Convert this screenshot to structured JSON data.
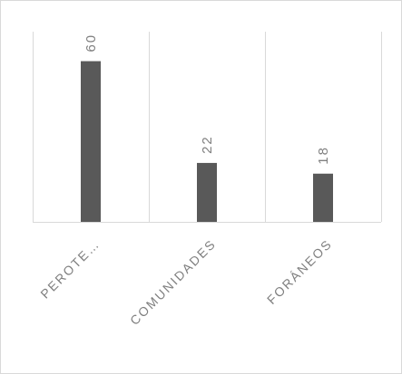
{
  "chart_data": {
    "type": "bar",
    "categories": [
      "PEROTE…",
      "COMUNIDADES",
      "FORÁNEOS"
    ],
    "series": [
      {
        "values": [
          60,
          22,
          18
        ]
      }
    ],
    "ylim": [
      0,
      71
    ],
    "grid": true,
    "legend": "none",
    "colors": {
      "bar": "#595959",
      "grid": "#d9d9d9",
      "text": "#7f7f7f"
    }
  }
}
